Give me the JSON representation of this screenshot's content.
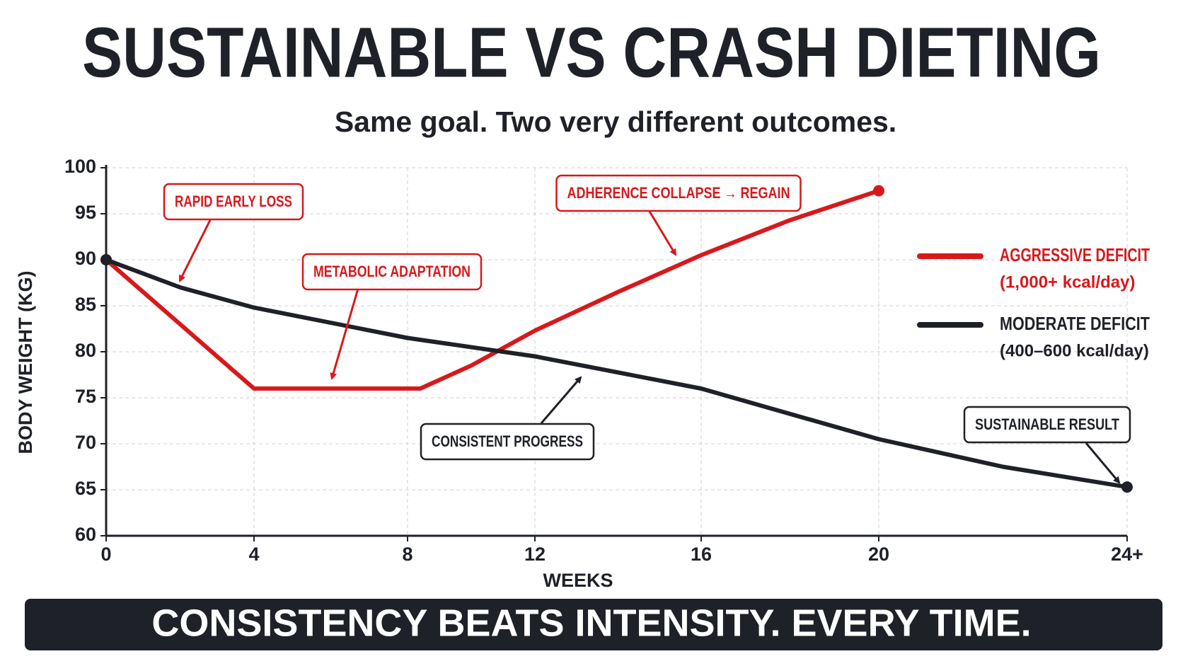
{
  "chart_data": {
    "type": "line",
    "title": "SUSTAINABLE VS CRASH DIETING",
    "subtitle": "Same goal. Two very different outcomes.",
    "x_label": "WEEKS",
    "y_label": "BODY WEIGHT (KG)",
    "footer": "CONSISTENCY BEATS INTENSITY. EVERY TIME.",
    "xlim": [
      0,
      24
    ],
    "xticks": [
      0,
      4,
      8,
      12,
      16,
      20,
      {
        "value": 24,
        "label": "24+"
      }
    ],
    "ylim": [
      60,
      100
    ],
    "yticks": [
      60,
      65,
      70,
      75,
      80,
      85,
      90,
      95,
      100
    ],
    "grid": true,
    "series": [
      {
        "name": "AGGRESSIVE DEFICIT",
        "note": "(1,000+ kcal/day)",
        "color": "#d7191c",
        "x": [
          0,
          4,
          8.4,
          10,
          12,
          14,
          16,
          18,
          20
        ],
        "values": [
          90,
          76,
          76,
          78.5,
          82.3,
          86.5,
          90.5,
          94.3,
          97.5
        ]
      },
      {
        "name": "MODERATE DEFICIT",
        "note": "(400–600 kcal/day)",
        "color": "#1e2127",
        "x": [
          0,
          2,
          4,
          8,
          12,
          16,
          20,
          22,
          24
        ],
        "values": [
          90,
          87,
          84.8,
          81.5,
          79.5,
          76,
          70.5,
          67.5,
          65.3
        ]
      }
    ],
    "annotations": [
      {
        "text": "RAPID EARLY LOSS",
        "series": 0
      },
      {
        "text": "METABOLIC ADAPTATION",
        "series": 0
      },
      {
        "text": "ADHERENCE COLLAPSE → REGAIN",
        "series": 0
      },
      {
        "text": "CONSISTENT PROGRESS",
        "series": 1
      },
      {
        "text": "SUSTAINABLE RESULT",
        "series": 1
      }
    ]
  }
}
